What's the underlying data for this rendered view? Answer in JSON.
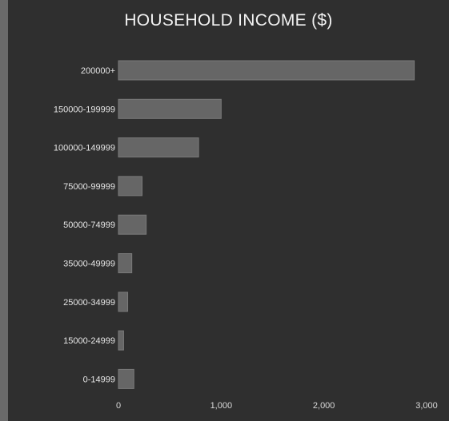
{
  "chart_data": {
    "type": "bar",
    "orientation": "horizontal",
    "title": "HOUSEHOLD INCOME ($)",
    "categories": [
      "200000+",
      "150000-199999",
      "100000-149999",
      "75000-99999",
      "50000-74999",
      "35000-49999",
      "25000-34999",
      "15000-24999",
      "0-14999"
    ],
    "values": [
      2880,
      1000,
      780,
      230,
      270,
      130,
      90,
      50,
      150
    ],
    "xticks": [
      "0",
      "1,000",
      "2,000",
      "3,000"
    ],
    "xlim": [
      0,
      3000
    ],
    "grid": false,
    "colors": {
      "bar": "#666666",
      "bar_edge": "#7a7a7a",
      "background": "#2f2f2f",
      "text": "#e6e6e6"
    }
  }
}
